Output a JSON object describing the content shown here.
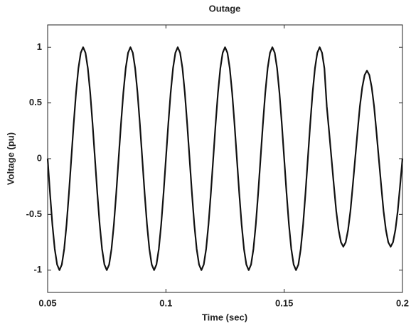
{
  "chart_data": {
    "type": "line",
    "title": "Outage",
    "x_label": "Time (sec)",
    "y_label": "Voltage (pu)",
    "xlim": [
      0.05,
      0.2
    ],
    "ylim": [
      -1.2,
      1.2
    ],
    "xticks": [
      0.05,
      0.1,
      0.15,
      0.2
    ],
    "yticks": [
      -1,
      -0.5,
      0,
      0.5,
      1
    ],
    "grid": false,
    "x": [
      0.05,
      0.051,
      0.052,
      0.053,
      0.054,
      0.055,
      0.056,
      0.057,
      0.058,
      0.059,
      0.06,
      0.061,
      0.062,
      0.063,
      0.064,
      0.065,
      0.066,
      0.067,
      0.068,
      0.069,
      0.07,
      0.071,
      0.072,
      0.073,
      0.074,
      0.075,
      0.076,
      0.077,
      0.078,
      0.079,
      0.08,
      0.081,
      0.082,
      0.083,
      0.084,
      0.085,
      0.086,
      0.087,
      0.088,
      0.089,
      0.09,
      0.091,
      0.092,
      0.093,
      0.094,
      0.095,
      0.096,
      0.097,
      0.098,
      0.099,
      0.1,
      0.101,
      0.102,
      0.103,
      0.104,
      0.105,
      0.106,
      0.107,
      0.108,
      0.109,
      0.11,
      0.111,
      0.112,
      0.113,
      0.114,
      0.115,
      0.116,
      0.117,
      0.118,
      0.119,
      0.12,
      0.121,
      0.122,
      0.123,
      0.124,
      0.125,
      0.126,
      0.127,
      0.128,
      0.129,
      0.13,
      0.131,
      0.132,
      0.133,
      0.134,
      0.135,
      0.136,
      0.137,
      0.138,
      0.139,
      0.14,
      0.141,
      0.142,
      0.143,
      0.144,
      0.145,
      0.146,
      0.147,
      0.148,
      0.149,
      0.15,
      0.151,
      0.152,
      0.153,
      0.154,
      0.155,
      0.156,
      0.157,
      0.158,
      0.159,
      0.16,
      0.161,
      0.162,
      0.163,
      0.164,
      0.165,
      0.166,
      0.167,
      0.168,
      0.169,
      0.17,
      0.171,
      0.172,
      0.173,
      0.174,
      0.175,
      0.176,
      0.177,
      0.178,
      0.179,
      0.18,
      0.181,
      0.182,
      0.183,
      0.184,
      0.185,
      0.186,
      0.187,
      0.188,
      0.189,
      0.19,
      0.191,
      0.192,
      0.193,
      0.194,
      0.195,
      0.196,
      0.197,
      0.198,
      0.199,
      0.2
    ],
    "series": [
      {
        "color": "#111111",
        "values": [
          0,
          -0.31,
          -0.59,
          -0.81,
          -0.95,
          -1,
          -0.95,
          -0.81,
          -0.59,
          -0.31,
          0,
          0.31,
          0.59,
          0.81,
          0.95,
          1,
          0.95,
          0.81,
          0.59,
          0.31,
          0,
          -0.31,
          -0.59,
          -0.81,
          -0.95,
          -1,
          -0.95,
          -0.81,
          -0.59,
          -0.31,
          0,
          0.31,
          0.59,
          0.81,
          0.95,
          1,
          0.95,
          0.81,
          0.59,
          0.31,
          0,
          -0.31,
          -0.59,
          -0.81,
          -0.95,
          -1,
          -0.95,
          -0.81,
          -0.59,
          -0.31,
          0,
          0.31,
          0.59,
          0.81,
          0.95,
          1,
          0.95,
          0.81,
          0.59,
          0.31,
          0,
          -0.31,
          -0.59,
          -0.81,
          -0.95,
          -1,
          -0.95,
          -0.81,
          -0.59,
          -0.31,
          0,
          0.31,
          0.59,
          0.81,
          0.95,
          1,
          0.95,
          0.81,
          0.59,
          0.31,
          0,
          -0.31,
          -0.59,
          -0.81,
          -0.95,
          -1,
          -0.95,
          -0.81,
          -0.59,
          -0.31,
          0,
          0.31,
          0.59,
          0.81,
          0.95,
          1,
          0.95,
          0.81,
          0.59,
          0.31,
          0,
          -0.31,
          -0.59,
          -0.81,
          -0.95,
          -1,
          -0.95,
          -0.81,
          -0.59,
          -0.31,
          0,
          0.31,
          0.59,
          0.81,
          0.95,
          1,
          0.95,
          0.81,
          0.47,
          0.24,
          0,
          -0.24,
          -0.47,
          -0.64,
          -0.75,
          -0.79,
          -0.75,
          -0.64,
          -0.47,
          -0.24,
          0,
          0.24,
          0.47,
          0.64,
          0.75,
          0.79,
          0.75,
          0.64,
          0.47,
          0.24,
          0,
          -0.24,
          -0.47,
          -0.64,
          -0.75,
          -0.79,
          -0.75,
          -0.64,
          -0.47,
          -0.24,
          0
        ]
      }
    ]
  }
}
